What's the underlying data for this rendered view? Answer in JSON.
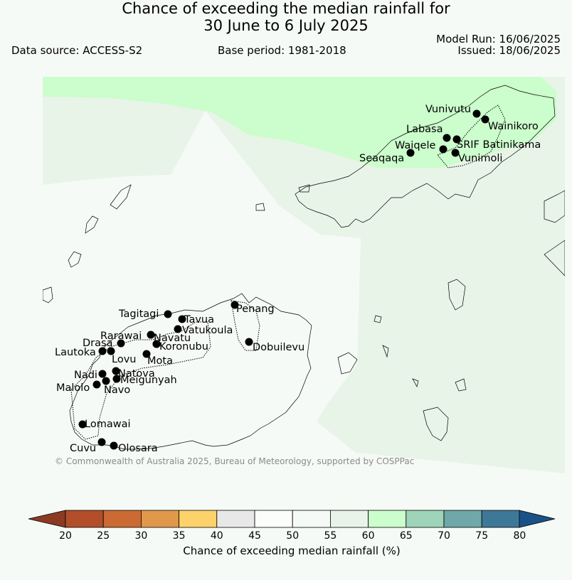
{
  "title_line1": "Chance of exceeding the median rainfall for",
  "title_line2": "30 June to 6 July 2025",
  "model_run": "Model Run: 16/06/2025",
  "issued": "Issued: 18/06/2025",
  "data_source": "Data source: ACCESS-S2",
  "base_period": "Base period: 1981-2018",
  "copyright": "© Commonwealth of Australia 2025, Bureau of Meteorology, supported by COSPPac",
  "colorbar": {
    "label": "Chance of exceeding median rainfall (%)",
    "ticks": [
      "20",
      "25",
      "30",
      "35",
      "40",
      "45",
      "50",
      "55",
      "60",
      "65",
      "70",
      "75",
      "80"
    ],
    "colors": [
      "#b34e2a",
      "#cc6a34",
      "#e0984a",
      "#fdd26a",
      "#e8e8e8",
      "#fbfdfb",
      "#f6faf6",
      "#e8f4e8",
      "#ccfdcc",
      "#9ed4b8",
      "#6fa8a8",
      "#3e7898"
    ],
    "under_color": "#8c3a22",
    "over_color": "#1a5288"
  },
  "regions": {
    "above_60_color": "#ccfdcc",
    "range_55_60_color": "#e8f4e8",
    "range_50_55_color": "#f6faf6"
  },
  "places": [
    {
      "name": "Vunivutu"
    },
    {
      "name": "Wainikoro"
    },
    {
      "name": "Labasa"
    },
    {
      "name": "SRIF Batinikama"
    },
    {
      "name": "Waiqele"
    },
    {
      "name": "Vunimoli"
    },
    {
      "name": "Seaqaqa"
    },
    {
      "name": "Penang"
    },
    {
      "name": "Tagitagi"
    },
    {
      "name": "Tavua"
    },
    {
      "name": "Vatukoula"
    },
    {
      "name": "Rarawai"
    },
    {
      "name": "Navatu"
    },
    {
      "name": "Koronubu"
    },
    {
      "name": "Dobuilevu"
    },
    {
      "name": "Drasa"
    },
    {
      "name": "Lautoka"
    },
    {
      "name": "Lovu"
    },
    {
      "name": "Mota"
    },
    {
      "name": "Natova"
    },
    {
      "name": "Nadi"
    },
    {
      "name": "Meigunyah"
    },
    {
      "name": "Malolo"
    },
    {
      "name": "Navo"
    },
    {
      "name": "Lomawai"
    },
    {
      "name": "Cuvu"
    },
    {
      "name": "Olosara"
    }
  ]
}
